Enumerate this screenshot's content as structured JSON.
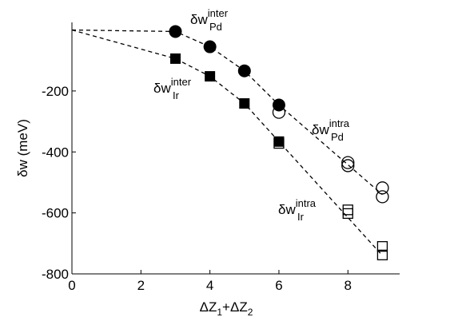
{
  "chart_data": {
    "type": "scatter",
    "y_label": "δw (meV)",
    "x_label": [
      "ΔZ",
      "1",
      "+ΔZ",
      "2"
    ],
    "xlim": [
      0,
      9.5
    ],
    "xticks": [
      0,
      2,
      4,
      6,
      8
    ],
    "ylim": [
      -800,
      25
    ],
    "yticks": [
      -800,
      -600,
      -400,
      -200
    ],
    "series": [
      {
        "marker": "filled-circle",
        "color": "#000000",
        "x": [
          3,
          4,
          5,
          6
        ],
        "values": [
          -5,
          -55,
          -134,
          -246
        ]
      },
      {
        "marker": "filled-square",
        "color": "#000000",
        "x": [
          3,
          4,
          5,
          6
        ],
        "values": [
          -94,
          -152,
          -241,
          -366
        ]
      },
      {
        "marker": "open-circle",
        "color": "#000000",
        "x": [
          6,
          8,
          8,
          9,
          9
        ],
        "values": [
          -270,
          -435,
          -445,
          -518,
          -547
        ]
      },
      {
        "marker": "open-square",
        "color": "#000000",
        "x": [
          6,
          8,
          8,
          9,
          9
        ],
        "values": [
          -372,
          -590,
          -602,
          -710,
          -738
        ]
      }
    ],
    "lines": [
      {
        "x": [
          0,
          3,
          4,
          5,
          6,
          9
        ],
        "values": [
          0,
          -5,
          -55,
          -134,
          -246,
          -540
        ]
      },
      {
        "x": [
          0,
          3,
          4,
          5,
          6,
          9
        ],
        "values": [
          0,
          -94,
          -152,
          -241,
          -366,
          -740
        ]
      }
    ],
    "annotations": [
      {
        "text": "δw",
        "sup": "inter",
        "sub": "Pd"
      },
      {
        "text": "δw",
        "sup": "inter",
        "sub": "Ir"
      },
      {
        "text": "δw",
        "sup": "intra",
        "sub": "Pd"
      },
      {
        "text": "δw",
        "sup": "intra",
        "sub": "Ir"
      }
    ]
  }
}
